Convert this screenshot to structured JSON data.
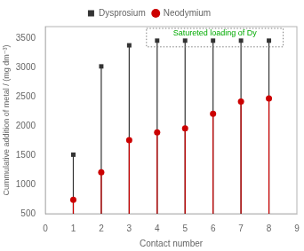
{
  "chart_data": {
    "type": "stem",
    "x": [
      1,
      2,
      3,
      4,
      5,
      6,
      7,
      8
    ],
    "series": [
      {
        "name": "Dysprosium",
        "color": "#333333",
        "marker": "square",
        "values": [
          1510,
          3020,
          3380,
          3460,
          3460,
          3460,
          3460,
          3460
        ]
      },
      {
        "name": "Neodymium",
        "color": "#cc0000",
        "marker": "circle",
        "values": [
          740,
          1210,
          1760,
          1890,
          1960,
          2210,
          2420,
          2470
        ]
      }
    ],
    "xlabel": "Contact number",
    "ylabel": "Cummulative addition of metal / (mg dm⁻³)",
    "xlim": [
      0,
      9
    ],
    "ylim": [
      500,
      3700
    ],
    "xticks": [
      0,
      1,
      2,
      3,
      4,
      5,
      6,
      7,
      8,
      9
    ],
    "yticks": [
      500,
      1000,
      1500,
      2000,
      2500,
      3000,
      3500
    ],
    "grid": false,
    "legend": "top",
    "annotations": [
      {
        "text": "Satureted loading of Dy",
        "color": "#00aa00"
      }
    ]
  }
}
